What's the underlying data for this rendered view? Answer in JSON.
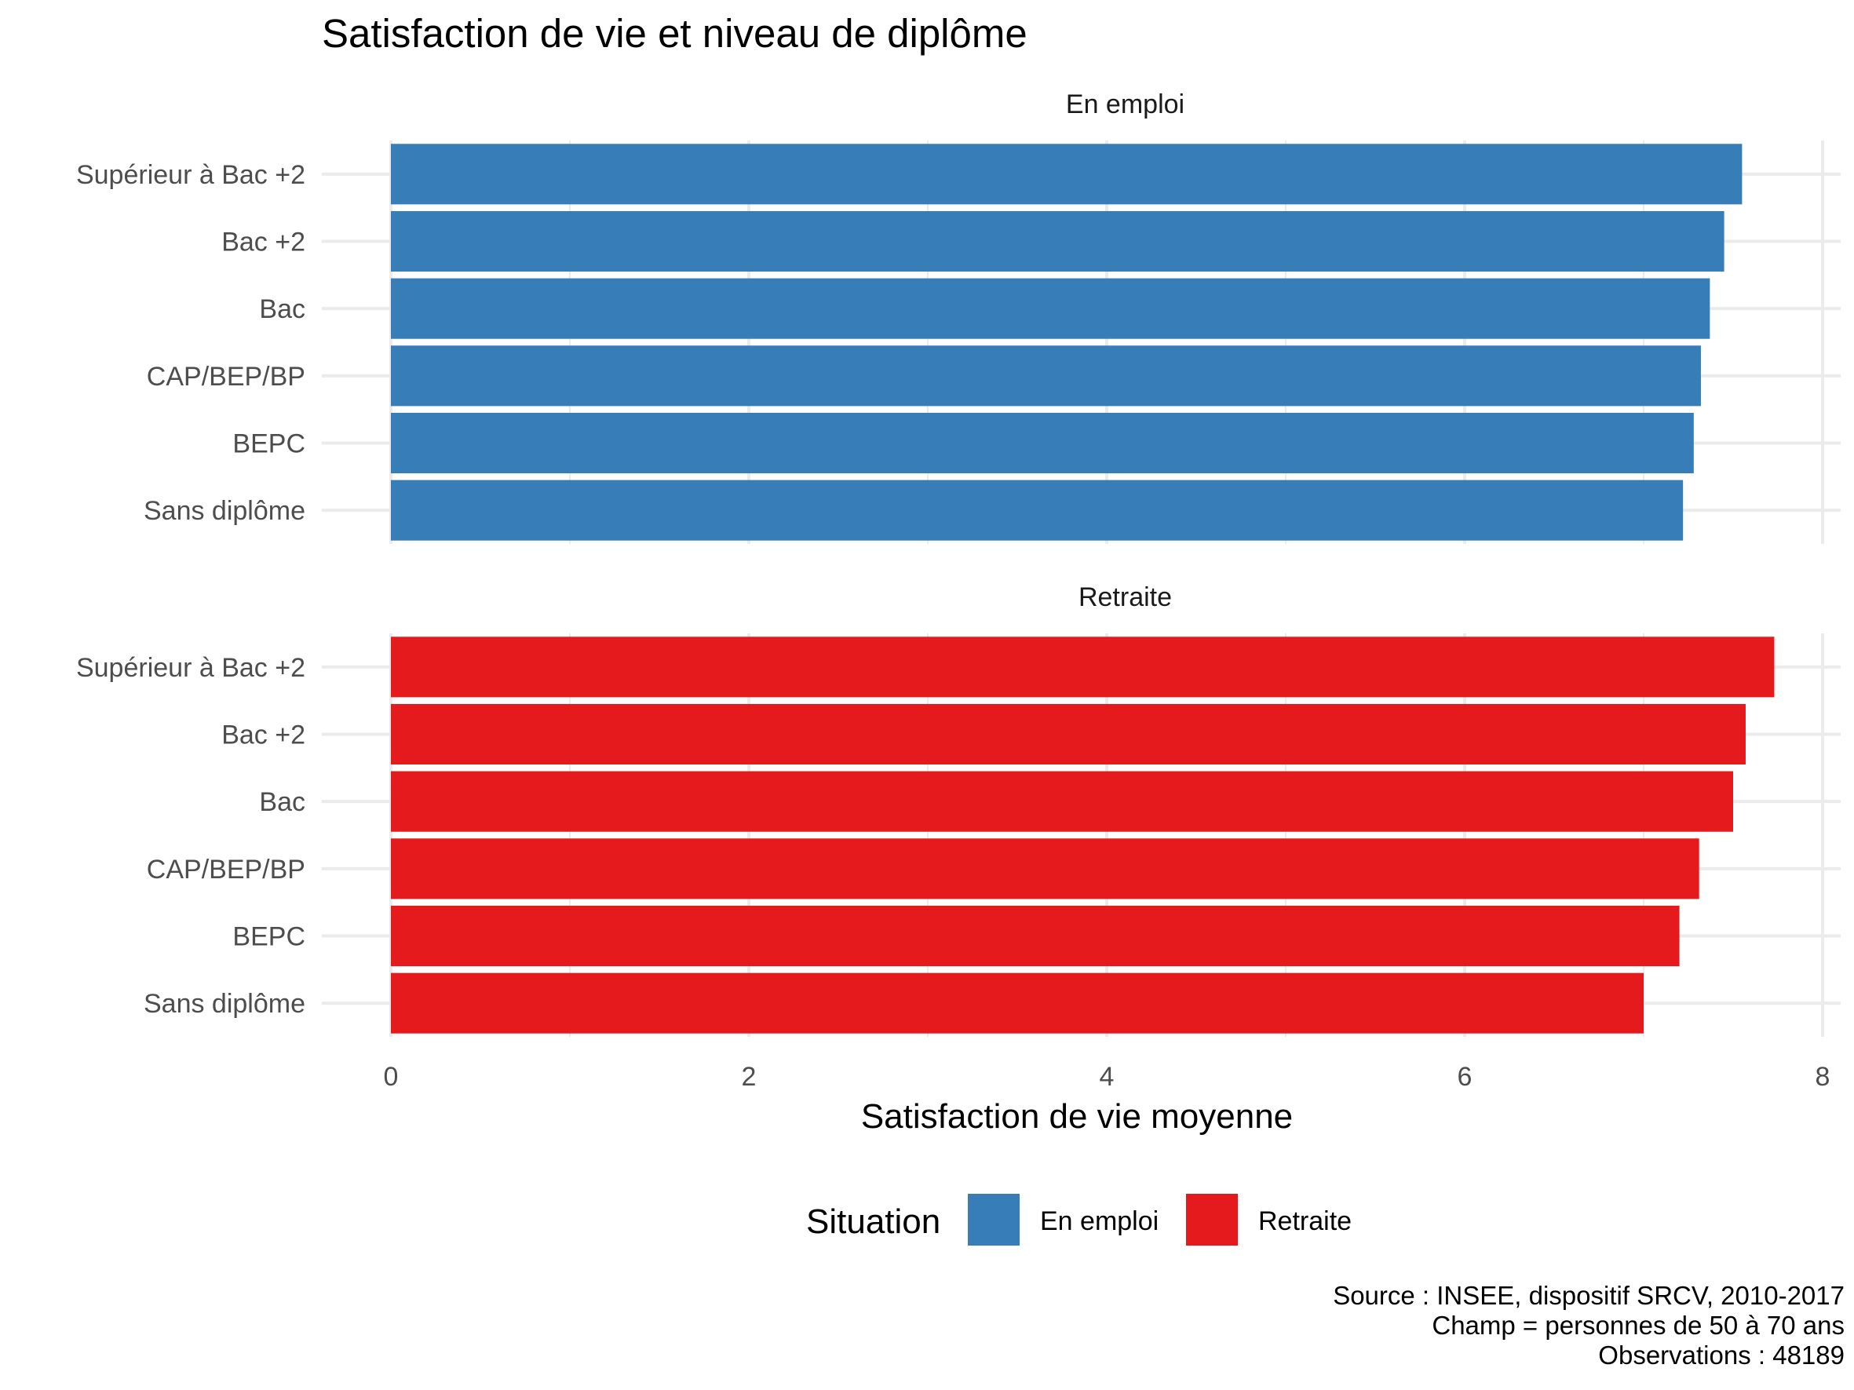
{
  "chart_data": {
    "type": "bar",
    "orientation": "horizontal",
    "title": "Satisfaction de vie et niveau de diplôme",
    "xlabel": "Satisfaction de vie moyenne",
    "ylabel": "",
    "xlim": [
      0,
      8
    ],
    "x_ticks": [
      "0",
      "2",
      "4",
      "6",
      "8"
    ],
    "categories": [
      "Supérieur à Bac +2",
      "Bac +2",
      "Bac",
      "CAP/BEP/BP",
      "BEPC",
      "Sans diplôme"
    ],
    "grid": true,
    "legend": {
      "title": "Situation",
      "position": "bottom"
    },
    "series": [
      {
        "name": "En emploi",
        "panel": "En emploi",
        "color": "#377EB8",
        "values": [
          7.55,
          7.45,
          7.37,
          7.32,
          7.28,
          7.22
        ]
      },
      {
        "name": "Retraite",
        "panel": "Retraite",
        "color": "#E41A1C",
        "values": [
          7.73,
          7.57,
          7.5,
          7.31,
          7.2,
          7.0
        ]
      }
    ],
    "caption": [
      "Source : INSEE, dispositif SRCV, 2010-2017",
      "Champ = personnes de 50 à 70 ans",
      "Observations : 48189"
    ]
  }
}
